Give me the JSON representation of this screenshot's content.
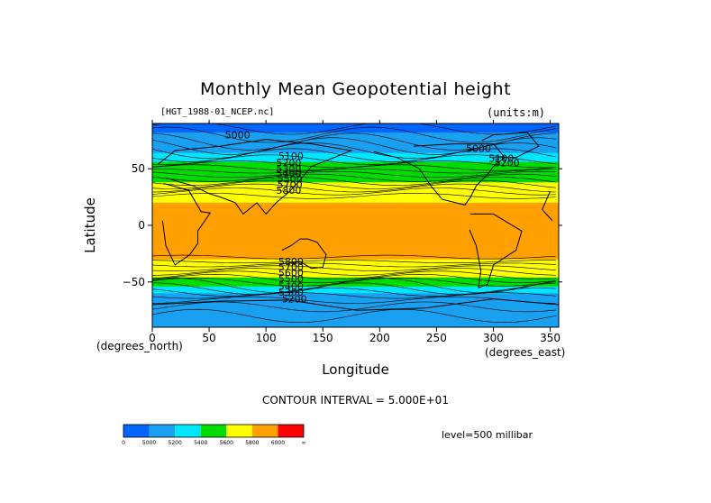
{
  "chart_data": {
    "type": "heatmap",
    "title": "Monthly Mean Geopotential height",
    "source_label": "[HGT_1988-01_NCEP.nc]",
    "units_label": "(units:m)",
    "xlabel": "Longitude",
    "ylabel": "Latitude",
    "x_unit_label": "(degrees_east)",
    "y_unit_label": "(degrees_north)",
    "xlim": [
      0,
      357.5
    ],
    "ylim": [
      -90,
      90
    ],
    "x_ticks": [
      0,
      50,
      100,
      150,
      200,
      250,
      300,
      350
    ],
    "y_ticks": [
      -50,
      0,
      50
    ],
    "contour_interval_text": "CONTOUR INTERVAL = 5.000E+01",
    "level_text": "level=500 millibar",
    "contour_labels": [
      {
        "text": "5000",
        "lon": 75,
        "lat": 77
      },
      {
        "text": "5100",
        "lon": 122,
        "lat": 58
      },
      {
        "text": "5200",
        "lon": 120,
        "lat": 52
      },
      {
        "text": "5300",
        "lon": 120,
        "lat": 47
      },
      {
        "text": "5400",
        "lon": 120,
        "lat": 43
      },
      {
        "text": "5500",
        "lon": 121,
        "lat": 38
      },
      {
        "text": "5700",
        "lon": 121,
        "lat": 33
      },
      {
        "text": "5800",
        "lon": 120,
        "lat": 28
      },
      {
        "text": "5000",
        "lon": 287,
        "lat": 65
      },
      {
        "text": "5100",
        "lon": 307,
        "lat": 56
      },
      {
        "text": "5200",
        "lon": 312,
        "lat": 52
      },
      {
        "text": "5800",
        "lon": 122,
        "lat": -35
      },
      {
        "text": "5700",
        "lon": 122,
        "lat": -40
      },
      {
        "text": "5600",
        "lon": 122,
        "lat": -45
      },
      {
        "text": "5500",
        "lon": 122,
        "lat": -50
      },
      {
        "text": "5400",
        "lon": 122,
        "lat": -57
      },
      {
        "text": "5300",
        "lon": 122,
        "lat": -62
      },
      {
        "text": "5200",
        "lon": 125,
        "lat": -68
      }
    ],
    "color_bins": [
      {
        "color": "#0064ff",
        "label": "0"
      },
      {
        "color": "#1aa0f0",
        "label": "5000"
      },
      {
        "color": "#00e6ff",
        "label": "5200"
      },
      {
        "color": "#00dc00",
        "label": "5400"
      },
      {
        "color": "#ffff00",
        "label": "5600"
      },
      {
        "color": "#ffa000",
        "label": "5800"
      },
      {
        "color": "#ff0000",
        "label": "6000"
      },
      {
        "color": "#ffffff",
        "label": "∞"
      }
    ],
    "latitude_bands": [
      {
        "lat_from": 90,
        "lat_to": 82,
        "value": 4990
      },
      {
        "lat_from": 82,
        "lat_to": 64,
        "value": 5100
      },
      {
        "lat_from": 64,
        "lat_to": 56,
        "value": 5250
      },
      {
        "lat_from": 56,
        "lat_to": 46,
        "value": 5420
      },
      {
        "lat_from": 46,
        "lat_to": 38,
        "value": 5520
      },
      {
        "lat_from": 38,
        "lat_to": 30,
        "value": 5650
      },
      {
        "lat_from": 30,
        "lat_to": 20,
        "value": 5720
      },
      {
        "lat_from": 20,
        "lat_to": -30,
        "value": 5850
      },
      {
        "lat_from": -30,
        "lat_to": -40,
        "value": 5720
      },
      {
        "lat_from": -40,
        "lat_to": -46,
        "value": 5620
      },
      {
        "lat_from": -46,
        "lat_to": -54,
        "value": 5470
      },
      {
        "lat_from": -54,
        "lat_to": -60,
        "value": 5320
      },
      {
        "lat_from": -60,
        "lat_to": -90,
        "value": 5120
      }
    ]
  }
}
